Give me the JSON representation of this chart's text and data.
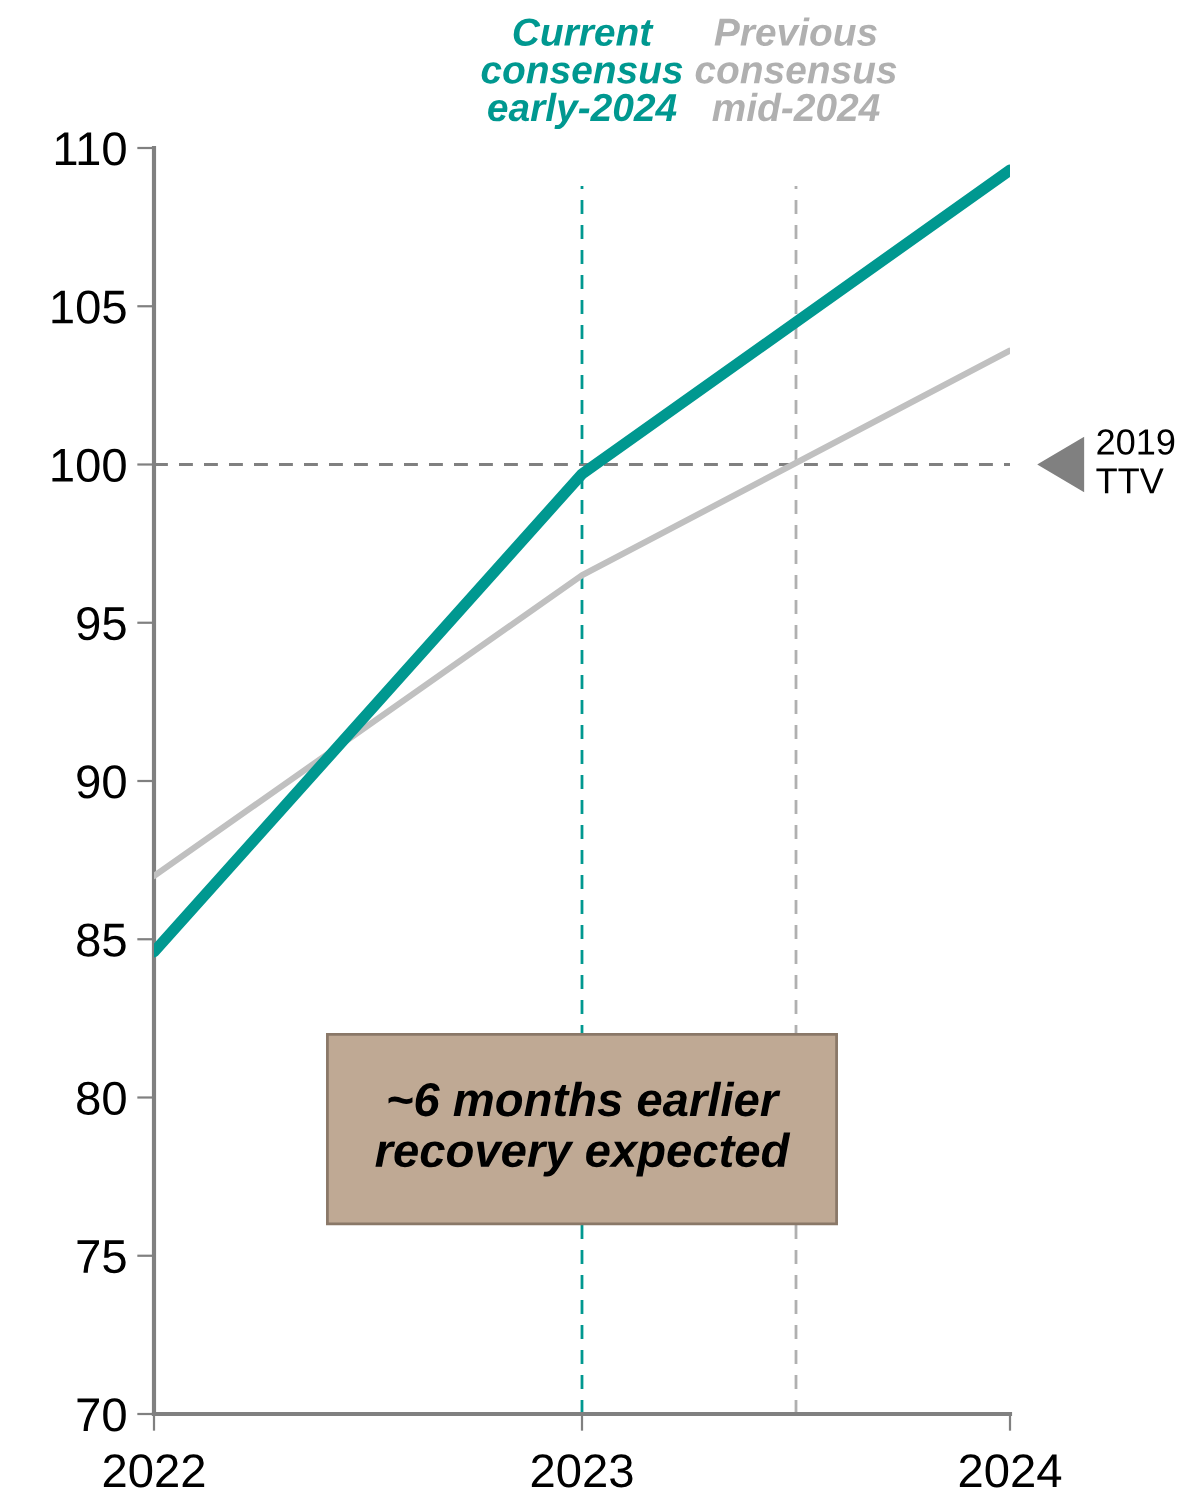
{
  "chart_data": {
    "type": "line",
    "x": [
      2022,
      2023,
      2024
    ],
    "series": [
      {
        "color": "#c0c0c0",
        "values": [
          87.0,
          96.5,
          103.6
        ]
      },
      {
        "color": "#009890",
        "values": [
          84.6,
          99.7,
          109.3
        ]
      }
    ],
    "xlim": [
      2022,
      2024
    ],
    "xticks": [
      2022,
      2023,
      2024
    ],
    "ylim": [
      70,
      110
    ],
    "yticks": [
      70,
      75,
      80,
      85,
      90,
      95,
      100,
      105,
      110
    ],
    "grid": false,
    "legend": false,
    "marker": "none",
    "line_style": "solid",
    "ref_lines": [
      {
        "axis": "y",
        "value": 100,
        "label": "2019\nTTV",
        "color": "#808080",
        "line_style": "dashed"
      },
      {
        "axis": "x",
        "value": 2023,
        "label": "Current\nconsensus\nearly-2024",
        "color": "#009890",
        "line_style": "dashed"
      },
      {
        "axis": "x",
        "value": 2023.5,
        "label": "Previous\nconsensus\nmid-2024",
        "color": "#b0b0b0",
        "line_style": "dashed"
      }
    ],
    "annotations": [
      "~6 months earlier\nrecovery expected"
    ]
  }
}
